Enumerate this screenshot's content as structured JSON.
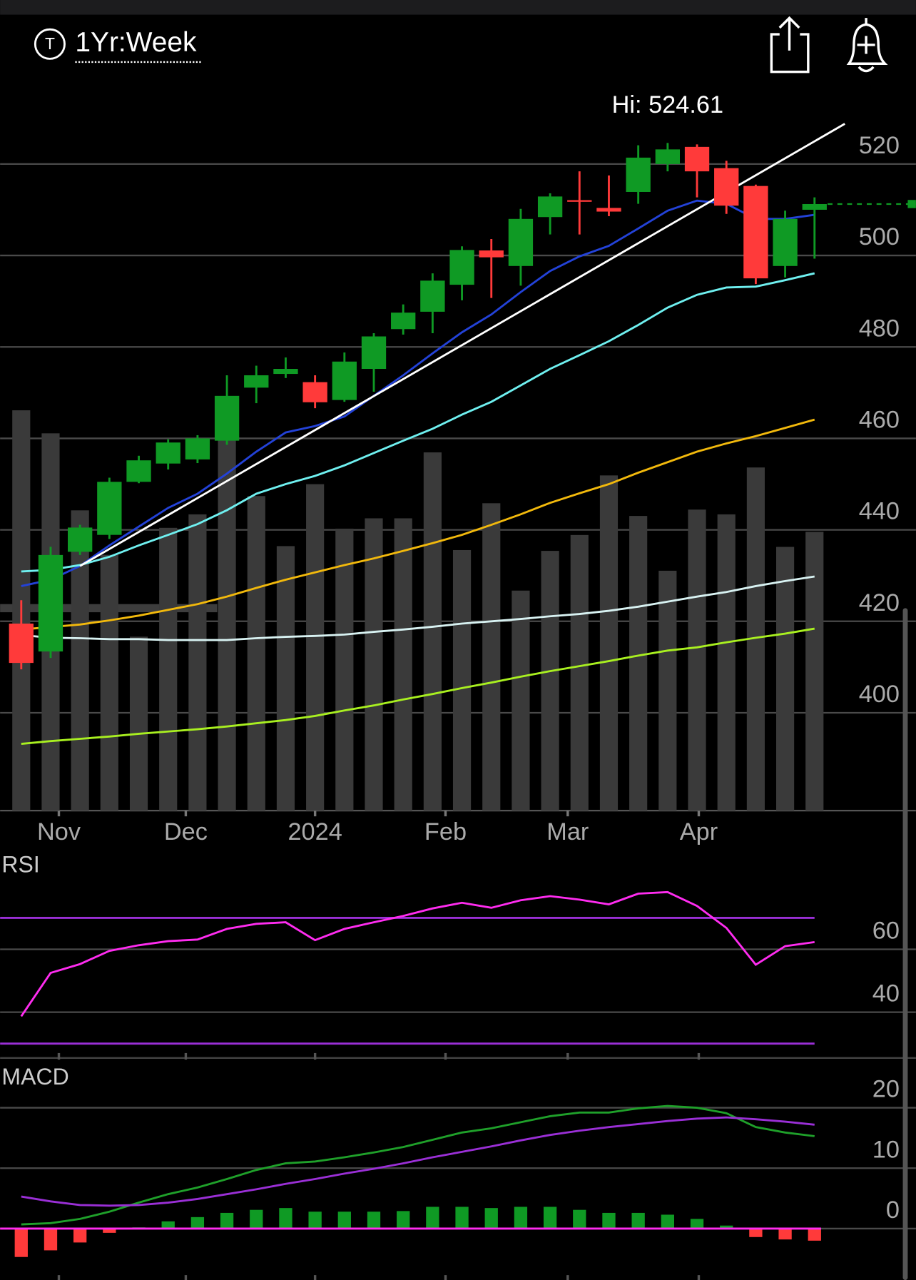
{
  "header": {
    "period": "1Yr:Week"
  },
  "chart_data": [
    {
      "type": "candlestick",
      "annotation": "Hi: 524.61",
      "categories": [
        null,
        null,
        null,
        null,
        null,
        null,
        null,
        null,
        null,
        null,
        null,
        null,
        null,
        null,
        null,
        null,
        null,
        null,
        null,
        null,
        null,
        null,
        null,
        null,
        null,
        null,
        null,
        null
      ],
      "xlim": [
        -0.72,
        30.45
      ],
      "xticks": [
        {
          "value": 1.28,
          "label": "Nov"
        },
        {
          "value": 5.6,
          "label": "Dec"
        },
        {
          "value": 10,
          "label": "2024"
        },
        {
          "value": 14.44,
          "label": "Feb"
        },
        {
          "value": 18.6,
          "label": "Mar"
        },
        {
          "value": 23.06,
          "label": "Apr"
        }
      ],
      "ylim": [
        378.6,
        552.3
      ],
      "yticks": [
        400,
        420,
        440,
        460,
        480,
        500,
        520
      ],
      "grid": true,
      "up_color": "#0f9a24",
      "down_color": "#ff3a3a",
      "open": [
        419.5,
        413.4,
        435.2,
        438.9,
        450.5,
        454.5,
        455.4,
        459.5,
        471.1,
        474.1,
        472.3,
        468.4,
        475.2,
        483.9,
        487.7,
        493.6,
        501.1,
        497.7,
        508.4,
        512.1,
        510.4,
        513.9,
        520,
        523.75,
        519.1,
        515.2,
        497.7,
        510
      ],
      "high": [
        424.6,
        436.3,
        441.1,
        451.4,
        456.2,
        459.8,
        460.7,
        473.8,
        475.9,
        477.7,
        473.8,
        478.8,
        483,
        489.3,
        496.1,
        502,
        503.6,
        510.2,
        513.6,
        518.4,
        517.5,
        524.1,
        524.61,
        524.3,
        520.7,
        515.5,
        509.8,
        512.7
      ],
      "low": [
        409.5,
        412,
        434.5,
        438,
        450.2,
        453.2,
        454.6,
        458.6,
        467.7,
        473.2,
        466.6,
        468,
        470.2,
        482.7,
        483,
        490.2,
        490.7,
        493.4,
        504.6,
        504.6,
        508.6,
        511.3,
        518.4,
        512.7,
        509.1,
        493.75,
        495.2,
        499.3
      ],
      "close": [
        410.9,
        434.5,
        440.5,
        450.5,
        455.2,
        459.1,
        460,
        469.3,
        473.8,
        475.2,
        467.9,
        476.8,
        482.3,
        487.5,
        494.5,
        501.2,
        499.6,
        508,
        512.9,
        511.8,
        509.6,
        521.4,
        523.2,
        518.4,
        510.9,
        495,
        508,
        511.25
      ],
      "volume": {
        "color": "#3a3a3a",
        "lim": [
          0,
          100
        ],
        "values": [
          50.4,
          47.5,
          37.8,
          32.2,
          21.9,
          35.6,
          37.3,
          46.6,
          39.6,
          33.3,
          41.1,
          35.5,
          36.8,
          36.8,
          45.1,
          32.8,
          38.7,
          27.7,
          32.7,
          34.7,
          42.2,
          37.1,
          30.2,
          37.9,
          37.3,
          43.2,
          33.2,
          35.1
        ]
      },
      "series": [
        {
          "color": "#2342d8",
          "values": [
            427.7,
            429.1,
            432.1,
            436.6,
            440.7,
            444.8,
            447.9,
            452.3,
            457.1,
            461.3,
            462.7,
            464.8,
            469.3,
            473.8,
            478.6,
            483.2,
            487.1,
            492,
            496.6,
            499.8,
            502.1,
            505.9,
            509.8,
            512,
            511.3,
            508,
            508,
            508.9
          ]
        },
        {
          "color": "#6ff0f0",
          "values": [
            430.9,
            431.25,
            432.3,
            434.1,
            436.6,
            438.9,
            441.25,
            444.3,
            447.9,
            450,
            451.8,
            454.1,
            456.8,
            459.5,
            462.1,
            465.2,
            468,
            471.6,
            475.2,
            478.2,
            481.25,
            484.8,
            488.6,
            491.4,
            493,
            493.2,
            494.6,
            496.1
          ]
        },
        {
          "color": "#f2b90c",
          "values": [
            418.2,
            418.75,
            419.3,
            420.2,
            421.25,
            422.5,
            423.75,
            425.4,
            427.3,
            429.1,
            430.7,
            432.3,
            433.75,
            435.4,
            437.1,
            438.9,
            441.1,
            443.4,
            445.9,
            448,
            450,
            452.5,
            454.8,
            457.1,
            458.9,
            460.5,
            462.3,
            464.1
          ]
        },
        {
          "color": "#d8f2f2",
          "values": [
            417,
            416.4,
            416.3,
            416.1,
            416.1,
            415.9,
            415.9,
            415.9,
            416.3,
            416.6,
            416.8,
            417.1,
            417.7,
            418.2,
            418.8,
            419.5,
            420,
            420.5,
            421.1,
            421.6,
            422.3,
            423.2,
            424.3,
            425.4,
            426.4,
            427.7,
            428.8,
            429.8
          ]
        },
        {
          "color": "#a9f020",
          "values": [
            393.2,
            393.8,
            394.3,
            394.8,
            395.4,
            395.9,
            396.4,
            397,
            397.7,
            398.4,
            399.3,
            400.5,
            401.6,
            402.9,
            404.1,
            405.4,
            406.6,
            407.9,
            409.1,
            410.2,
            411.3,
            412.5,
            413.6,
            414.3,
            415.4,
            416.4,
            417.3,
            418.4
          ]
        }
      ],
      "trendline": {
        "color": "#ffffff",
        "x": [
          2,
          28.03
        ],
        "values": [
          432.1,
          528.8
        ]
      }
    },
    {
      "type": "line",
      "title": "RSI",
      "xlim": [
        -0.72,
        30.45
      ],
      "ylim": [
        25.45,
        91.9
      ],
      "yticks": [
        40,
        60
      ],
      "grid": true,
      "bands": {
        "color": "#9a2fd6",
        "values": [
          30,
          70
        ]
      },
      "series": [
        {
          "color": "#ff2cf0",
          "values": [
            38.7,
            52.5,
            55.3,
            59.5,
            61.3,
            62.6,
            63.1,
            66.5,
            68.1,
            68.6,
            62.9,
            66.5,
            68.6,
            70.6,
            73,
            74.8,
            73.2,
            75.6,
            76.9,
            75.8,
            74.3,
            77.7,
            78.2,
            73.8,
            66.8,
            55.1,
            61,
            62.3
          ]
        }
      ]
    },
    {
      "type": "macd",
      "title": "MACD",
      "xlim": [
        -0.72,
        30.45
      ],
      "ylim": [
        -8.51,
        27.7
      ],
      "yticks": [
        0,
        10,
        20
      ],
      "grid": true,
      "zero_color": "#ff2cf0",
      "histogram": {
        "up_color": "#0f9a24",
        "down_color": "#ff3a3a",
        "values": [
          -4.7,
          -3.6,
          -2.3,
          -0.7,
          0.2,
          1.2,
          1.9,
          2.6,
          3.1,
          3.4,
          2.8,
          2.8,
          2.8,
          2.9,
          3.6,
          3.6,
          3.4,
          3.6,
          3.6,
          3.1,
          2.6,
          2.6,
          2.3,
          1.6,
          0.5,
          -1.4,
          -1.8,
          -2
        ]
      },
      "series": [
        {
          "color": "#1fa02a",
          "values": [
            0.7,
            0.9,
            1.6,
            2.8,
            4.3,
            5.7,
            6.8,
            8.2,
            9.7,
            10.8,
            11.1,
            11.8,
            12.6,
            13.5,
            14.7,
            15.9,
            16.6,
            17.6,
            18.6,
            19.2,
            19.2,
            19.9,
            20.3,
            20,
            19.1,
            16.8,
            15.9,
            15.3
          ]
        },
        {
          "color": "#9a2fd6",
          "values": [
            5.3,
            4.5,
            3.9,
            3.8,
            3.9,
            4.3,
            4.9,
            5.7,
            6.5,
            7.4,
            8.2,
            9.1,
            9.9,
            10.8,
            11.8,
            12.7,
            13.6,
            14.6,
            15.5,
            16.2,
            16.8,
            17.3,
            17.8,
            18.2,
            18.4,
            18.1,
            17.7,
            17.2
          ]
        }
      ]
    }
  ]
}
